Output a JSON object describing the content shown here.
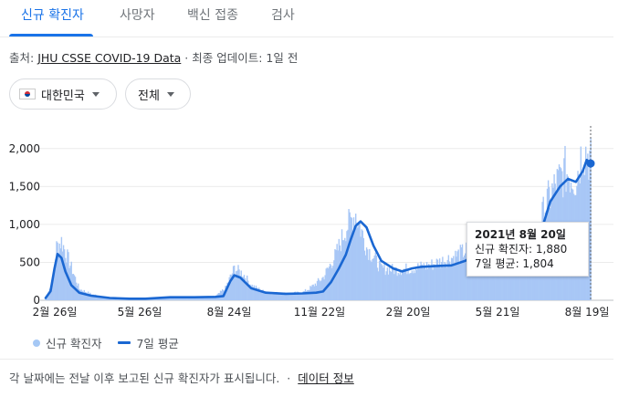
{
  "tabs": [
    {
      "label": "신규 확진자",
      "active": true
    },
    {
      "label": "사망자",
      "active": false
    },
    {
      "label": "백신 접종",
      "active": false
    },
    {
      "label": "검사",
      "active": false
    }
  ],
  "source": {
    "prefix": "출처: ",
    "link": "JHU CSSE COVID-19 Data",
    "suffix": " · 최종 업데이트: 1일 전"
  },
  "filters": {
    "region": "대한민국",
    "range": "전체"
  },
  "tooltip": {
    "date": "2021년 8월 20일",
    "cases": "신규 확진자: 1,880",
    "avg": "7일 평균: 1,804"
  },
  "legend": {
    "bars": "신규 확진자",
    "line": "7일 평균"
  },
  "footer": {
    "note": "각 날짜에는 전날 이후 보고된 신규 확진자가 표시됩니다.",
    "separator": "·",
    "link": "데이터 정보"
  },
  "colors": {
    "bar": "#a8c7f6",
    "line": "#1a67d2",
    "accent": "#1a73e8"
  },
  "chart_data": {
    "type": "bar",
    "x_tick_labels": [
      "2월 26일",
      "5월 26일",
      "8월 24일",
      "11월 22일",
      "2월 20일",
      "5월 21일",
      "8월 19일"
    ],
    "y_tick_labels": [
      "0",
      "500",
      "1,000",
      "1,500",
      "2,000"
    ],
    "y_ticks": [
      0,
      500,
      1000,
      1500,
      2000
    ],
    "ylim": [
      0,
      2250
    ],
    "grid": true,
    "legend_position": "bottom-left",
    "series": [
      {
        "kind": "bars",
        "x": [
          "2020-02-15",
          "2020-02-22",
          "2020-02-26",
          "2020-03-02",
          "2020-03-10",
          "2020-03-20",
          "2020-04-01",
          "2020-04-15",
          "2020-05-01",
          "2020-05-26",
          "2020-06-15",
          "2020-07-05",
          "2020-07-25",
          "2020-08-05",
          "2020-08-15",
          "2020-08-24",
          "2020-09-02",
          "2020-09-10",
          "2020-09-25",
          "2020-10-15",
          "2020-11-01",
          "2020-11-10",
          "2020-11-22",
          "2020-12-05",
          "2020-12-15",
          "2020-12-25",
          "2021-01-05",
          "2021-01-20",
          "2021-02-05",
          "2021-02-20",
          "2021-03-10",
          "2021-04-01",
          "2021-04-20",
          "2021-05-05",
          "2021-05-21",
          "2021-06-10",
          "2021-06-25",
          "2021-07-05",
          "2021-07-15",
          "2021-07-25",
          "2021-08-05",
          "2021-08-12",
          "2021-08-20"
        ],
        "y": [
          30,
          250,
          700,
          780,
          500,
          150,
          80,
          40,
          20,
          20,
          40,
          45,
          40,
          50,
          160,
          420,
          350,
          200,
          100,
          90,
          100,
          170,
          300,
          600,
          950,
          1150,
          700,
          420,
          400,
          420,
          460,
          560,
          680,
          620,
          620,
          560,
          780,
          1250,
          1500,
          1700,
          1600,
          2000,
          1880
        ]
      },
      {
        "kind": "line",
        "x": [
          "2020-02-15",
          "2020-02-20",
          "2020-02-24",
          "2020-02-27",
          "2020-03-02",
          "2020-03-06",
          "2020-03-12",
          "2020-03-20",
          "2020-04-01",
          "2020-04-20",
          "2020-05-10",
          "2020-05-26",
          "2020-06-20",
          "2020-07-15",
          "2020-08-05",
          "2020-08-13",
          "2020-08-20",
          "2020-08-24",
          "2020-08-30",
          "2020-09-10",
          "2020-09-25",
          "2020-10-15",
          "2020-11-01",
          "2020-11-15",
          "2020-11-22",
          "2020-11-30",
          "2020-12-08",
          "2020-12-15",
          "2020-12-20",
          "2020-12-25",
          "2020-12-30",
          "2021-01-05",
          "2021-01-12",
          "2021-01-20",
          "2021-02-01",
          "2021-02-10",
          "2021-02-20",
          "2021-03-01",
          "2021-03-15",
          "2021-04-01",
          "2021-04-15",
          "2021-04-25",
          "2021-05-05",
          "2021-05-15",
          "2021-05-21",
          "2021-06-01",
          "2021-06-15",
          "2021-06-28",
          "2021-07-03",
          "2021-07-10",
          "2021-07-20",
          "2021-07-28",
          "2021-08-05",
          "2021-08-12",
          "2021-08-16",
          "2021-08-20"
        ],
        "y": [
          30,
          120,
          420,
          610,
          560,
          380,
          200,
          100,
          60,
          30,
          20,
          20,
          40,
          40,
          45,
          55,
          250,
          330,
          300,
          160,
          100,
          85,
          90,
          100,
          115,
          240,
          420,
          600,
          800,
          980,
          1040,
          960,
          720,
          520,
          420,
          380,
          420,
          440,
          450,
          460,
          520,
          600,
          650,
          620,
          620,
          560,
          570,
          680,
          1000,
          1300,
          1500,
          1600,
          1560,
          1700,
          1850,
          1804
        ]
      }
    ],
    "highlight": {
      "x": "2021-08-20",
      "value": 1880,
      "avg": 1804
    }
  }
}
